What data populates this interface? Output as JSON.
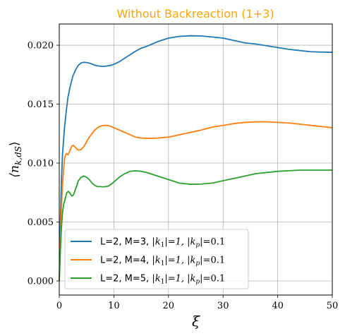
{
  "chart_data": {
    "type": "line",
    "title": "Without Backreaction (1+3)",
    "title_color": "#FFA500",
    "xlabel": "ξ",
    "ylabel": "⟨n_{k,dS}⟩",
    "xlim": [
      0,
      50
    ],
    "ylim": [
      -0.0012,
      0.0218
    ],
    "xticks": [
      0,
      10,
      20,
      30,
      40,
      50
    ],
    "xtick_labels": [
      "0",
      "10",
      "20",
      "30",
      "40",
      "50"
    ],
    "yticks": [
      0.0,
      0.005,
      0.01,
      0.015,
      0.02
    ],
    "ytick_labels": [
      "0.000",
      "0.005",
      "0.010",
      "0.015",
      "0.020"
    ],
    "grid": true,
    "legend_position": "lower-left",
    "series": [
      {
        "name": "L=2, M=3, |k1|=1, |kp|=0.1",
        "legend_parts": [
          "L=2, M=3, ",
          "|k",
          "1",
          "|=1, |k",
          "p",
          "|=0.1"
        ],
        "color": "#1f77b4",
        "x": [
          0,
          0.2,
          0.4,
          0.6,
          0.8,
          1,
          1.3,
          1.6,
          2,
          2.5,
          3,
          3.5,
          4,
          4.5,
          5,
          5.5,
          6,
          6.5,
          7,
          7.5,
          8,
          8.5,
          9,
          9.5,
          10,
          11,
          12,
          13,
          14,
          15,
          16,
          18,
          20,
          22,
          24,
          26,
          28,
          30,
          32,
          34,
          36,
          38,
          40,
          42,
          44,
          46,
          48,
          50
        ],
        "y": [
          0.0,
          0.005,
          0.0085,
          0.0108,
          0.012,
          0.0132,
          0.0145,
          0.0156,
          0.0165,
          0.0174,
          0.0179,
          0.0183,
          0.0185,
          0.01855,
          0.01853,
          0.01848,
          0.0184,
          0.0183,
          0.01825,
          0.01822,
          0.0182,
          0.01822,
          0.01826,
          0.0183,
          0.01838,
          0.0186,
          0.0189,
          0.0192,
          0.0195,
          0.01975,
          0.0199,
          0.0203,
          0.0206,
          0.02075,
          0.0208,
          0.02078,
          0.0207,
          0.0206,
          0.0204,
          0.0202,
          0.0201,
          0.01995,
          0.0198,
          0.01965,
          0.01955,
          0.01945,
          0.01942,
          0.0194
        ]
      },
      {
        "name": "L=2, M=4, |k1|=1, |kp|=0.1",
        "legend_parts": [
          "L=2, M=4, ",
          "|k",
          "1",
          "|=1, |k",
          "p",
          "|=0.1"
        ],
        "color": "#ff7f0e",
        "x": [
          0,
          0.2,
          0.4,
          0.6,
          0.8,
          1,
          1.3,
          1.6,
          2,
          2.3,
          2.6,
          3,
          3.5,
          4,
          4.5,
          5,
          5.5,
          6,
          6.5,
          7,
          7.5,
          8,
          8.5,
          9,
          9.5,
          10,
          11,
          12,
          13,
          14,
          15,
          16,
          17,
          18,
          19,
          20,
          22,
          24,
          26,
          28,
          30,
          32,
          34,
          36,
          38,
          40,
          42,
          44,
          46,
          48,
          50
        ],
        "y": [
          0.0,
          0.0035,
          0.0062,
          0.0082,
          0.0095,
          0.0105,
          0.0108,
          0.0107,
          0.0111,
          0.01145,
          0.0115,
          0.0113,
          0.0111,
          0.01115,
          0.0114,
          0.0118,
          0.0122,
          0.0125,
          0.0128,
          0.013,
          0.01312,
          0.01318,
          0.0132,
          0.01318,
          0.0131,
          0.013,
          0.0128,
          0.0126,
          0.0124,
          0.0122,
          0.01212,
          0.0121,
          0.0121,
          0.01212,
          0.01216,
          0.0122,
          0.0124,
          0.0126,
          0.0128,
          0.01305,
          0.0132,
          0.01335,
          0.01345,
          0.0135,
          0.0135,
          0.01345,
          0.0134,
          0.0133,
          0.0132,
          0.0131,
          0.013
        ]
      },
      {
        "name": "L=2, M=5, |k1|=1, |kp|=0.1",
        "legend_parts": [
          "L=2, M=5, ",
          "|k",
          "1",
          "|=1, |k",
          "p",
          "|=0.1"
        ],
        "color": "#2ca02c",
        "x": [
          0,
          0.2,
          0.4,
          0.6,
          0.8,
          1,
          1.2,
          1.4,
          1.7,
          2,
          2.3,
          2.6,
          3,
          3.5,
          4,
          4.5,
          5,
          5.5,
          6,
          6.5,
          7,
          7.5,
          8,
          8.5,
          9,
          9.5,
          10,
          11,
          12,
          13,
          14,
          15,
          16,
          18,
          20,
          22,
          24,
          26,
          28,
          30,
          32,
          34,
          36,
          38,
          40,
          42,
          44,
          46,
          48,
          50
        ],
        "y": [
          0.0,
          0.0025,
          0.0045,
          0.0058,
          0.0065,
          0.0068,
          0.0072,
          0.0075,
          0.0076,
          0.0074,
          0.0072,
          0.0073,
          0.0078,
          0.0085,
          0.0088,
          0.0089,
          0.0088,
          0.0086,
          0.0083,
          0.0081,
          0.008,
          0.008,
          0.00798,
          0.008,
          0.00805,
          0.0082,
          0.0084,
          0.0088,
          0.0091,
          0.0093,
          0.00935,
          0.0093,
          0.0092,
          0.0089,
          0.0086,
          0.0083,
          0.0082,
          0.00822,
          0.0083,
          0.0085,
          0.0087,
          0.0089,
          0.0091,
          0.0092,
          0.0093,
          0.00935,
          0.0094,
          0.0094,
          0.0094,
          0.0094
        ]
      }
    ]
  }
}
